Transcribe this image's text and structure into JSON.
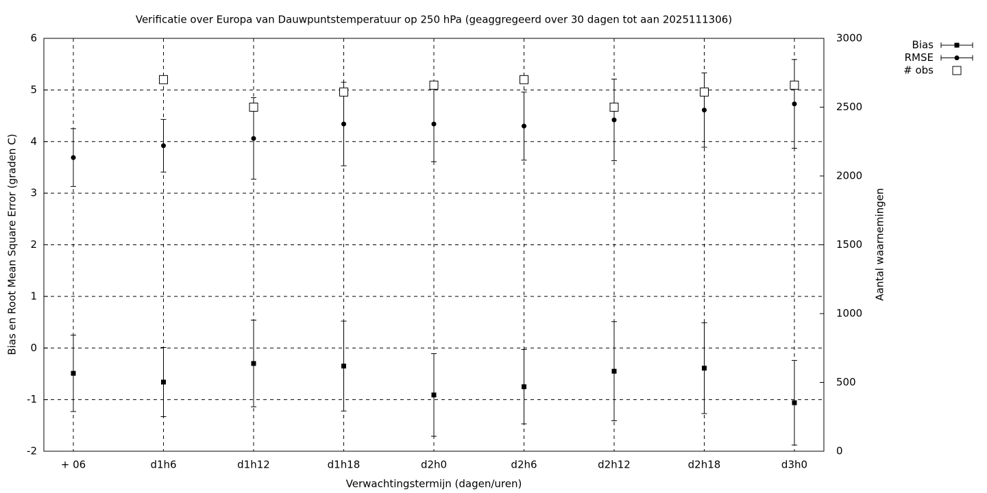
{
  "chart_data": {
    "type": "errorbar",
    "title": "Verificatie over Europa van Dauwpuntstemperatuur op 250 hPa (geaggregeerd over 30 dagen tot aan 2025111306)",
    "x_label": "Verwachtingstermijn (dagen/uren)",
    "y_label": "Bias en Root Mean Square Error (graden C)",
    "y2_label": "Aantal waarnemingen",
    "categories": [
      "+ 06",
      "d1h6",
      "d1h12",
      "d1h18",
      "d2h0",
      "d2h6",
      "d2h12",
      "d2h18",
      "d3h0"
    ],
    "ylim": [
      -2,
      6
    ],
    "yticks": [
      -2,
      -1,
      0,
      1,
      2,
      3,
      4,
      5,
      6
    ],
    "y2lim": [
      0,
      3000
    ],
    "y2ticks": [
      0,
      500,
      1000,
      1500,
      2000,
      2500,
      3000
    ],
    "grid": true,
    "legend": "top-right-outside",
    "series": [
      {
        "name": "Bias",
        "color": "#000000",
        "marker": "square",
        "values": [
          -0.49,
          -0.66,
          -0.3,
          -0.35,
          -0.91,
          -0.75,
          -0.45,
          -0.39,
          -1.06
        ],
        "errors": [
          0.74,
          0.67,
          0.84,
          0.87,
          0.8,
          0.72,
          0.96,
          0.88,
          0.82
        ]
      },
      {
        "name": "RMSE",
        "color": "#000000",
        "marker": "circle",
        "values": [
          3.69,
          3.92,
          4.06,
          4.34,
          4.34,
          4.3,
          4.42,
          4.61,
          4.73
        ],
        "errors": [
          0.56,
          0.51,
          0.79,
          0.81,
          0.73,
          0.66,
          0.79,
          0.72,
          0.86
        ]
      },
      {
        "name": "# obs",
        "color": "#000000",
        "marker": "open-square",
        "axis": "y2",
        "values": [
          null,
          2700,
          2500,
          2610,
          2660,
          2700,
          2500,
          2610,
          2660
        ]
      }
    ]
  }
}
